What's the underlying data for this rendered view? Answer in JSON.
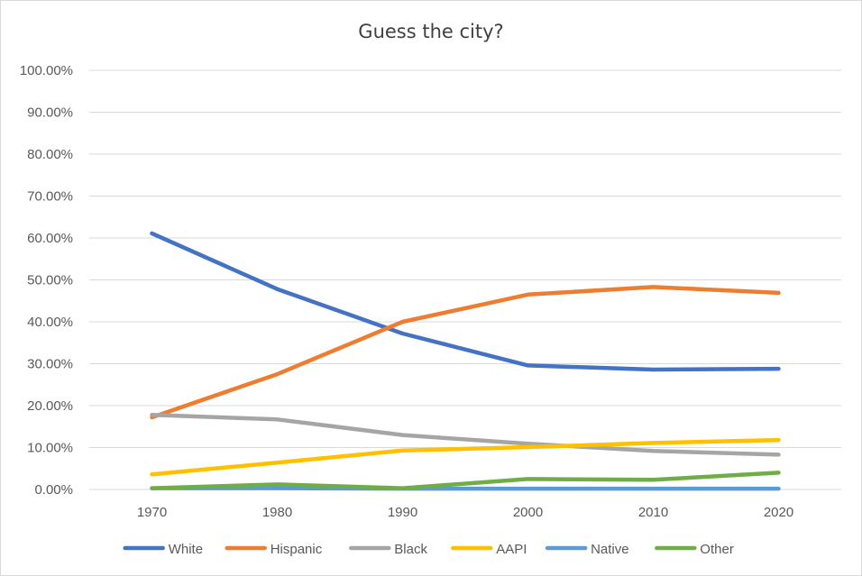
{
  "chart_data": {
    "type": "line",
    "title": "Guess the city?",
    "xlabel": "",
    "ylabel": "",
    "categories": [
      "1970",
      "1980",
      "1990",
      "2000",
      "2010",
      "2020"
    ],
    "ylim": [
      0,
      1
    ],
    "yticks": [
      0,
      0.1,
      0.2,
      0.3,
      0.4,
      0.5,
      0.6,
      0.7,
      0.8,
      0.9,
      1.0
    ],
    "ytick_labels": [
      "0.00%",
      "10.00%",
      "20.00%",
      "30.00%",
      "40.00%",
      "50.00%",
      "60.00%",
      "70.00%",
      "80.00%",
      "90.00%",
      "100.00%"
    ],
    "grid": "horizontal",
    "legend_position": "bottom",
    "series": [
      {
        "name": "White",
        "color": "#4472C4",
        "values": [
          0.611,
          0.478,
          0.372,
          0.296,
          0.286,
          0.288
        ]
      },
      {
        "name": "Hispanic",
        "color": "#ED7D31",
        "values": [
          0.172,
          0.275,
          0.4,
          0.465,
          0.483,
          0.469
        ]
      },
      {
        "name": "Black",
        "color": "#A5A5A5",
        "values": [
          0.178,
          0.167,
          0.13,
          0.109,
          0.092,
          0.083
        ]
      },
      {
        "name": "AAPI",
        "color": "#FFC000",
        "values": [
          0.036,
          0.064,
          0.093,
          0.101,
          0.111,
          0.118
        ]
      },
      {
        "name": "Native",
        "color": "#5B9BD5",
        "values": [
          0.003,
          0.003,
          0.002,
          0.002,
          0.002,
          0.002
        ]
      },
      {
        "name": "Other",
        "color": "#70AD47",
        "values": [
          0.003,
          0.012,
          0.003,
          0.025,
          0.023,
          0.04
        ]
      }
    ]
  }
}
